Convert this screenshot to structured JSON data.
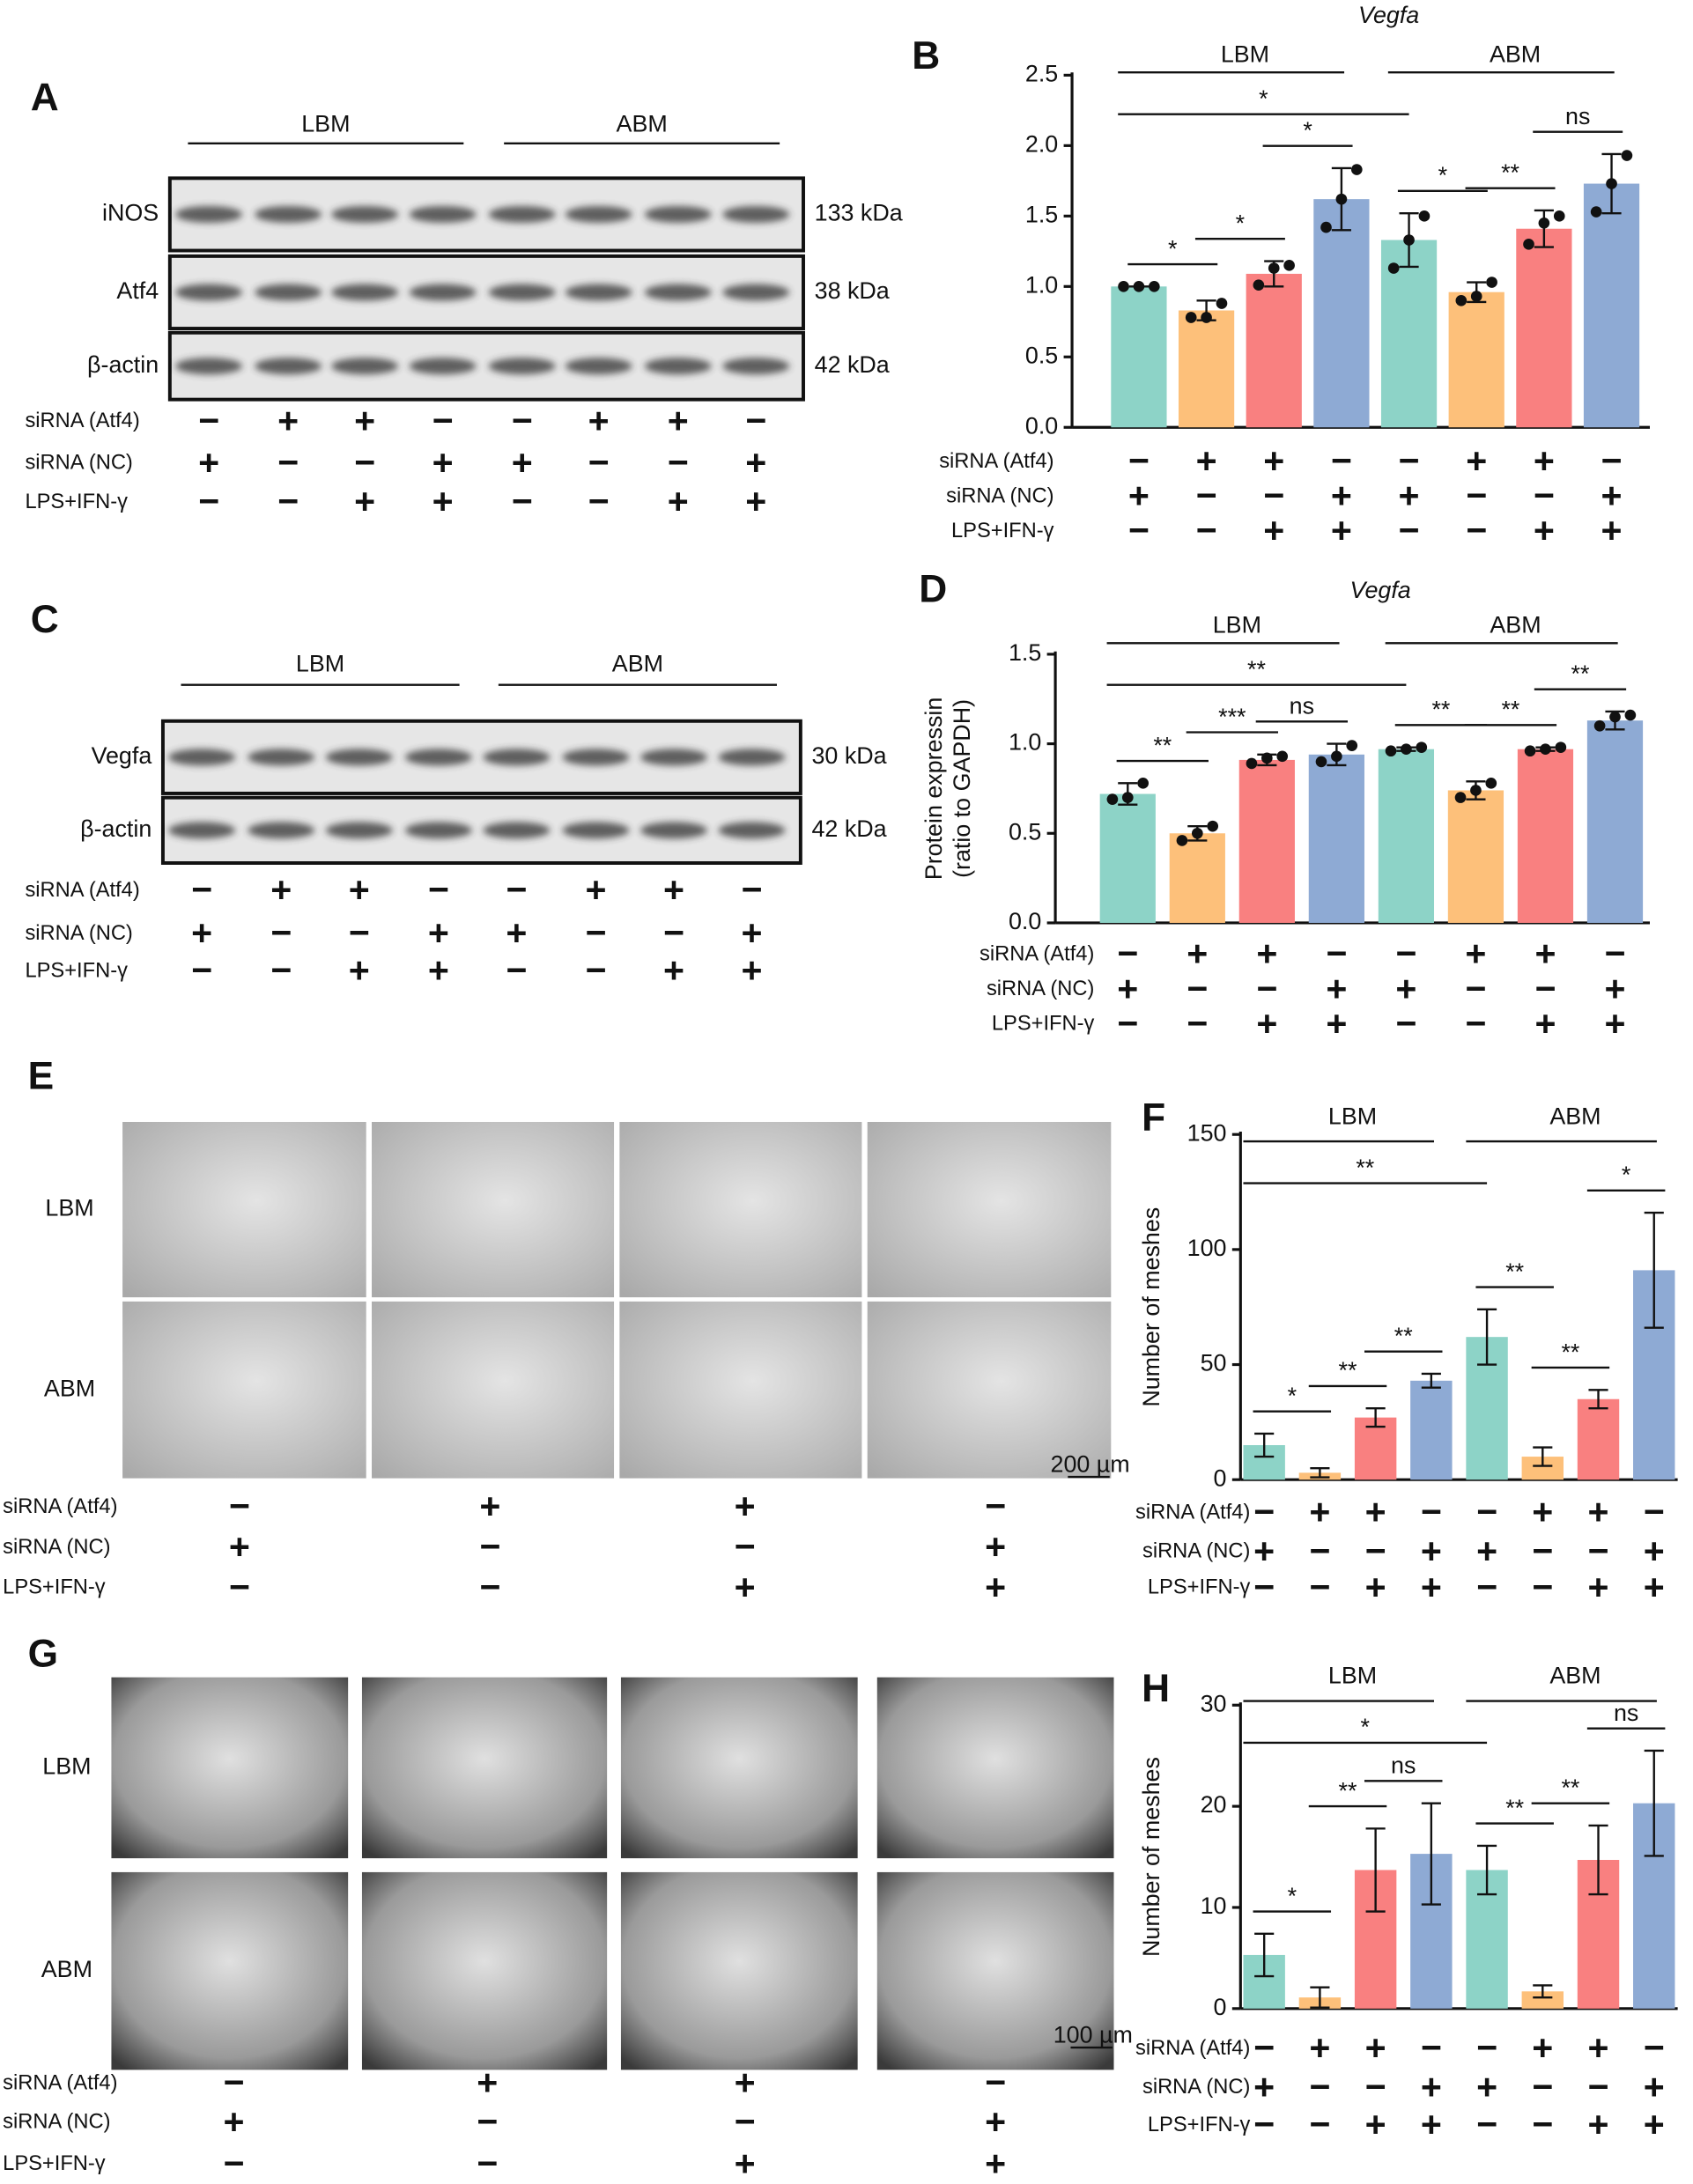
{
  "conditions": [
    {
      "label": "siRNA (Atf4)",
      "signs": [
        "−",
        "+",
        "+",
        "−",
        "−",
        "+",
        "+",
        "−"
      ]
    },
    {
      "label": "siRNA (NC)",
      "signs": [
        "+",
        "−",
        "−",
        "+",
        "+",
        "−",
        "−",
        "+"
      ]
    },
    {
      "label": "LPS+IFN-γ",
      "signs": [
        "−",
        "−",
        "+",
        "+",
        "−",
        "−",
        "+",
        "+"
      ]
    }
  ],
  "blots": [
    {
      "letter": "A",
      "groups": [
        "LBM",
        "ABM"
      ],
      "rows": [
        {
          "label": "iNOS",
          "size": "133 kDa"
        },
        {
          "label": "Atf4",
          "size": "38 kDa"
        },
        {
          "label": "β-actin",
          "size": "42 kDa"
        }
      ]
    },
    {
      "letter": "C",
      "groups": [
        "LBM",
        "ABM"
      ],
      "rows": [
        {
          "label": "Vegfa",
          "size": "30 kDa"
        },
        {
          "label": "β-actin",
          "size": "42 kDa"
        }
      ]
    }
  ],
  "images": [
    {
      "letter": "E",
      "rows": [
        "LBM",
        "ABM"
      ],
      "scale": "200 µm"
    },
    {
      "letter": "G",
      "rows": [
        "LBM",
        "ABM"
      ],
      "scale": "100 µm"
    }
  ],
  "chart_data": [
    {
      "type": "bar",
      "panel": "B",
      "title": "Vegfa",
      "groups": [
        "LBM",
        "ABM"
      ],
      "ylim": [
        0,
        2.5
      ],
      "yticks": [
        {
          "value": 0,
          "label": "0.0"
        },
        0.5,
        {
          "value": 1,
          "label": "1.0"
        },
        1.5,
        {
          "value": 2,
          "label": "2.0"
        },
        2.5
      ],
      "series": [
        {
          "colors": [
            "#8dd3c7",
            "#fdc07a",
            "#f98080",
            "#8eaad4",
            "#8dd3c7",
            "#fdc07a",
            "#f98080",
            "#8eaad4"
          ],
          "values": [
            1.0,
            0.83,
            1.09,
            1.62,
            1.33,
            0.96,
            1.41,
            1.73
          ],
          "errors": [
            0,
            0.07,
            0.09,
            0.22,
            0.19,
            0.07,
            0.13,
            0.21
          ],
          "points": [
            [
              1,
              1,
              1
            ],
            [
              0.78,
              0.78,
              0.88
            ],
            [
              1.01,
              1.13,
              1.15
            ],
            [
              1.42,
              1.62,
              1.83
            ],
            [
              1.13,
              1.33,
              1.5
            ],
            [
              0.9,
              0.93,
              1.03
            ],
            [
              1.3,
              1.45,
              1.5
            ],
            [
              1.53,
              1.73,
              1.93
            ]
          ]
        }
      ],
      "comparisons": [
        {
          "pair": [
            0,
            1
          ],
          "label": "*"
        },
        {
          "pair": [
            1,
            2
          ],
          "label": "*"
        },
        {
          "pair": [
            2,
            3
          ],
          "label": "*"
        },
        {
          "pair": [
            0,
            4
          ],
          "label": "*"
        },
        {
          "pair": [
            4,
            5
          ],
          "label": "*"
        },
        {
          "pair": [
            5,
            6
          ],
          "label": "**"
        },
        {
          "pair": [
            6,
            7
          ],
          "label": "ns"
        }
      ]
    },
    {
      "type": "bar",
      "panel": "D",
      "title": "Vegfa",
      "groups": [
        "LBM",
        "ABM"
      ],
      "ylabel": [
        "Protein expressin",
        "(ratio to GAPDH)"
      ],
      "ylim": [
        0,
        1.5
      ],
      "yticks": [
        {
          "value": 0,
          "label": "0.0"
        },
        0.5,
        {
          "value": 1,
          "label": "1.0"
        },
        1.5
      ],
      "series": [
        {
          "colors": [
            "#8dd3c7",
            "#fdc07a",
            "#f98080",
            "#8eaad4",
            "#8dd3c7",
            "#fdc07a",
            "#f98080",
            "#8eaad4"
          ],
          "values": [
            0.72,
            0.5,
            0.91,
            0.94,
            0.97,
            0.74,
            0.97,
            1.13
          ],
          "errors": [
            0.06,
            0.04,
            0.03,
            0.06,
            0.01,
            0.05,
            0.01,
            0.05
          ],
          "points": [
            [
              0.69,
              0.7,
              0.78
            ],
            [
              0.46,
              0.5,
              0.54
            ],
            [
              0.89,
              0.92,
              0.93
            ],
            [
              0.9,
              0.93,
              0.99
            ],
            [
              0.96,
              0.97,
              0.98
            ],
            [
              0.7,
              0.74,
              0.78
            ],
            [
              0.96,
              0.97,
              0.98
            ],
            [
              1.1,
              1.15,
              1.16
            ]
          ]
        }
      ],
      "comparisons": [
        {
          "pair": [
            0,
            1
          ],
          "label": "**"
        },
        {
          "pair": [
            1,
            2
          ],
          "label": "***"
        },
        {
          "pair": [
            2,
            3
          ],
          "label": "ns"
        },
        {
          "pair": [
            0,
            4
          ],
          "label": "**"
        },
        {
          "pair": [
            4,
            5
          ],
          "label": "**"
        },
        {
          "pair": [
            5,
            6
          ],
          "label": "**"
        },
        {
          "pair": [
            6,
            7
          ],
          "label": "**"
        }
      ]
    },
    {
      "type": "bar",
      "panel": "F",
      "groups": [
        "LBM",
        "ABM"
      ],
      "ylabel": "Number of meshes",
      "ylim": [
        0,
        150
      ],
      "yticks": [
        0,
        50,
        100,
        150
      ],
      "series": [
        {
          "colors": [
            "#8dd3c7",
            "#fdc07a",
            "#f98080",
            "#8eaad4",
            "#8dd3c7",
            "#fdc07a",
            "#f98080",
            "#8eaad4"
          ],
          "values": [
            15,
            3,
            27,
            43,
            62,
            10,
            35,
            91
          ],
          "errors": [
            5,
            2,
            4,
            3,
            12,
            4,
            4,
            25
          ]
        }
      ],
      "comparisons": [
        {
          "pair": [
            0,
            1
          ],
          "label": "*"
        },
        {
          "pair": [
            1,
            2
          ],
          "label": "**"
        },
        {
          "pair": [
            2,
            3
          ],
          "label": "**"
        },
        {
          "pair": [
            0,
            4
          ],
          "label": "**"
        },
        {
          "pair": [
            4,
            5
          ],
          "label": "**"
        },
        {
          "pair": [
            5,
            6
          ],
          "label": "**"
        },
        {
          "pair": [
            6,
            7
          ],
          "label": "*"
        }
      ]
    },
    {
      "type": "bar",
      "panel": "H",
      "groups": [
        "LBM",
        "ABM"
      ],
      "ylabel": "Number of meshes",
      "ylim": [
        0,
        30
      ],
      "yticks": [
        0,
        10,
        20,
        30
      ],
      "series": [
        {
          "colors": [
            "#8dd3c7",
            "#fdc07a",
            "#f98080",
            "#8eaad4",
            "#8dd3c7",
            "#fdc07a",
            "#f98080",
            "#8eaad4"
          ],
          "values": [
            5.3,
            1.1,
            13.7,
            15.3,
            13.7,
            1.7,
            14.7,
            20.3
          ],
          "errors": [
            2.1,
            1.0,
            4.1,
            5.0,
            2.4,
            0.6,
            3.4,
            5.2
          ]
        }
      ],
      "comparisons": [
        {
          "pair": [
            0,
            1
          ],
          "label": "*"
        },
        {
          "pair": [
            1,
            2
          ],
          "label": "**"
        },
        {
          "pair": [
            2,
            3
          ],
          "label": "ns"
        },
        {
          "pair": [
            0,
            4
          ],
          "label": "*"
        },
        {
          "pair": [
            4,
            5
          ],
          "label": "**"
        },
        {
          "pair": [
            5,
            6
          ],
          "label": "**"
        },
        {
          "pair": [
            6,
            7
          ],
          "label": "ns"
        }
      ]
    }
  ]
}
